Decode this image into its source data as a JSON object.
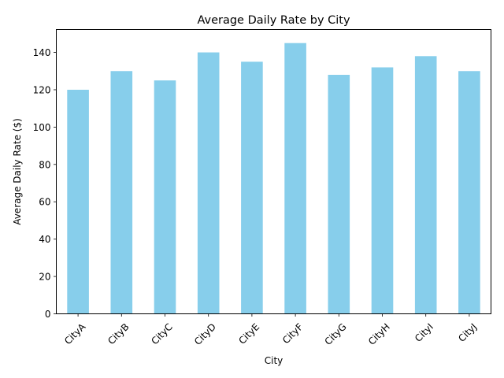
{
  "chart_data": {
    "type": "bar",
    "title": "Average Daily Rate by City",
    "xlabel": "City",
    "ylabel": "Average Daily Rate ($)",
    "categories": [
      "CityA",
      "CityB",
      "CityC",
      "CityD",
      "CityE",
      "CityF",
      "CityG",
      "CityH",
      "CityI",
      "CityJ"
    ],
    "values": [
      120,
      130,
      125,
      140,
      135,
      145,
      128,
      132,
      138,
      130
    ],
    "ylim": [
      0,
      152.25
    ],
    "yticks": [
      0,
      20,
      40,
      60,
      80,
      100,
      120,
      140
    ],
    "bar_color": "#87ceeb",
    "grid": false,
    "legend": "none",
    "xtick_rotation_degrees": 45
  }
}
